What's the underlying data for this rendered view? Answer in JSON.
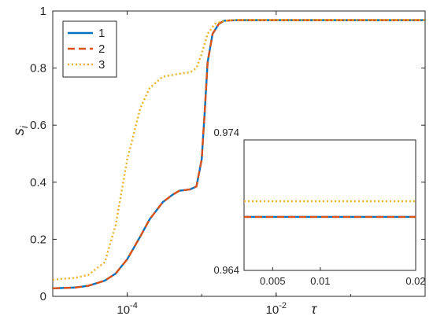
{
  "chart_data": [
    {
      "type": "line",
      "xscale": "log",
      "xlim": [
        1e-05,
        1
      ],
      "ylim": [
        0,
        1
      ],
      "ylabel": "s",
      "ylabel_sub": "i",
      "xlabel": "τ",
      "xticks": [
        {
          "value": 0.0001,
          "base": "10",
          "exp": "-4"
        },
        {
          "value": 0.01,
          "base": "10",
          "exp": "-2"
        }
      ],
      "yticks": [
        {
          "value": 0,
          "label": "0"
        },
        {
          "value": 0.2,
          "label": "0.2"
        },
        {
          "value": 0.4,
          "label": "0.4"
        },
        {
          "value": 0.6,
          "label": "0.6"
        },
        {
          "value": 0.8,
          "label": "0.8"
        },
        {
          "value": 1,
          "label": "1"
        }
      ],
      "legend_position": "top-left",
      "grid": false,
      "series": [
        {
          "name": "1",
          "color": "#0072BD",
          "style": "solid",
          "points": [
            [
              1e-05,
              0.028
            ],
            [
              2e-05,
              0.031
            ],
            [
              3e-05,
              0.037
            ],
            [
              5e-05,
              0.055
            ],
            [
              7e-05,
              0.08
            ],
            [
              0.0001,
              0.13
            ],
            [
              0.00015,
              0.21
            ],
            [
              0.0002,
              0.27
            ],
            [
              0.0003,
              0.33
            ],
            [
              0.0004,
              0.355
            ],
            [
              0.0005,
              0.37
            ],
            [
              0.0007,
              0.375
            ],
            [
              0.00085,
              0.385
            ],
            [
              0.001,
              0.48
            ],
            [
              0.0011,
              0.65
            ],
            [
              0.0012,
              0.82
            ],
            [
              0.0014,
              0.92
            ],
            [
              0.0017,
              0.955
            ],
            [
              0.002,
              0.966
            ],
            [
              0.003,
              0.968
            ],
            [
              1,
              0.968
            ]
          ]
        },
        {
          "name": "2",
          "color": "#D95319",
          "style": "dashed",
          "points": [
            [
              1e-05,
              0.028
            ],
            [
              2e-05,
              0.031
            ],
            [
              3e-05,
              0.037
            ],
            [
              5e-05,
              0.055
            ],
            [
              7e-05,
              0.08
            ],
            [
              0.0001,
              0.13
            ],
            [
              0.00015,
              0.21
            ],
            [
              0.0002,
              0.27
            ],
            [
              0.0003,
              0.33
            ],
            [
              0.0004,
              0.355
            ],
            [
              0.0005,
              0.37
            ],
            [
              0.0007,
              0.375
            ],
            [
              0.00085,
              0.385
            ],
            [
              0.001,
              0.48
            ],
            [
              0.0011,
              0.65
            ],
            [
              0.0012,
              0.82
            ],
            [
              0.0014,
              0.92
            ],
            [
              0.0017,
              0.955
            ],
            [
              0.002,
              0.966
            ],
            [
              0.003,
              0.968
            ],
            [
              1,
              0.968
            ]
          ]
        },
        {
          "name": "3",
          "color": "#EDB120",
          "style": "dotted",
          "points": [
            [
              1e-05,
              0.058
            ],
            [
              2e-05,
              0.065
            ],
            [
              3e-05,
              0.075
            ],
            [
              5e-05,
              0.12
            ],
            [
              7e-05,
              0.25
            ],
            [
              0.0001,
              0.48
            ],
            [
              0.00015,
              0.66
            ],
            [
              0.0002,
              0.73
            ],
            [
              0.0003,
              0.77
            ],
            [
              0.0005,
              0.78
            ],
            [
              0.0007,
              0.785
            ],
            [
              0.00085,
              0.8
            ],
            [
              0.001,
              0.85
            ],
            [
              0.0012,
              0.92
            ],
            [
              0.0015,
              0.955
            ],
            [
              0.002,
              0.966
            ],
            [
              0.003,
              0.969
            ],
            [
              1,
              0.969
            ]
          ]
        }
      ]
    },
    {
      "type": "line",
      "inset": true,
      "xlim": [
        0.002,
        0.02
      ],
      "ylim": [
        0.964,
        0.974
      ],
      "xticks": [
        {
          "value": 0.005,
          "label": "0.005"
        },
        {
          "value": 0.01,
          "label": "0.01"
        },
        {
          "value": 0.02,
          "label": "0.02"
        }
      ],
      "yticks": [
        {
          "value": 0.964,
          "label": "0.964"
        },
        {
          "value": 0.974,
          "label": "0.974"
        }
      ],
      "series": [
        {
          "name": "1",
          "color": "#0072BD",
          "style": "solid",
          "points": [
            [
              0.002,
              0.9681
            ],
            [
              0.02,
              0.9681
            ]
          ]
        },
        {
          "name": "2",
          "color": "#D95319",
          "style": "dashed",
          "points": [
            [
              0.002,
              0.9681
            ],
            [
              0.02,
              0.9681
            ]
          ]
        },
        {
          "name": "3",
          "color": "#EDB120",
          "style": "dotted",
          "points": [
            [
              0.002,
              0.9693
            ],
            [
              0.02,
              0.9693
            ]
          ]
        }
      ]
    }
  ]
}
